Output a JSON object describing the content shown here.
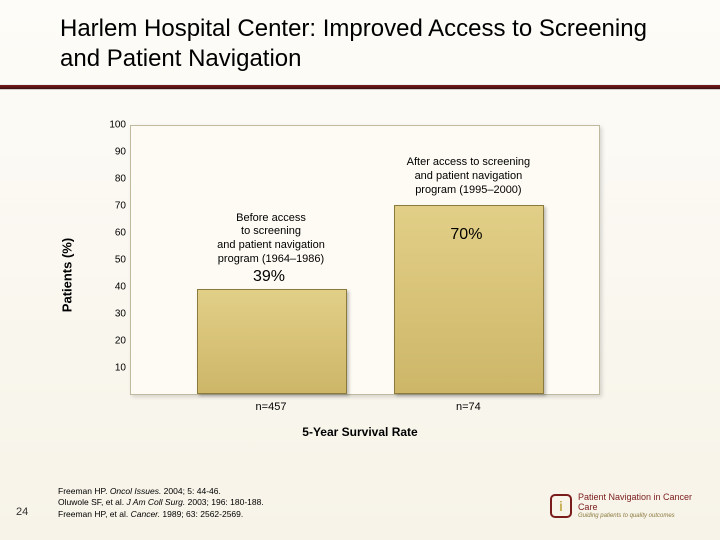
{
  "title": "Harlem Hospital Center: Improved Access to Screening and Patient Navigation",
  "chart": {
    "type": "bar",
    "y_axis_label": "Patients (%)",
    "ylim": [
      0,
      100
    ],
    "ytick_step": 10,
    "plot_bg": "#fdfbf3",
    "plot_border": "#bfb9a0",
    "bar_fill_top": "#e2cf87",
    "bar_fill_bottom": "#cdb668",
    "bar_border": "#8a7a3d",
    "bars": [
      {
        "value": 39,
        "value_label": "39%",
        "caption": "Before access\nto screening\nand patient navigation\nprogram (1964–1986)",
        "n_label": "n=457"
      },
      {
        "value": 70,
        "value_label": "70%",
        "caption": "After access to screening\nand patient navigation\nprogram (1995–2000)",
        "n_label": "n=74"
      }
    ],
    "x_title": "5-Year Survival Rate",
    "caption_fontsize": 11,
    "value_fontsize": 16
  },
  "footer": {
    "lines": [
      {
        "pre": "Freeman HP. ",
        "ital": "Oncol Issues.",
        "post": " 2004; 5: 44-46."
      },
      {
        "pre": "Oluwole SF, et al. ",
        "ital": "J Am Coll Surg.",
        "post": " 2003; 196: 180-188."
      },
      {
        "pre": "Freeman HP, et al. ",
        "ital": "Cancer.",
        "post": " 1989; 63: 2562-2569."
      }
    ]
  },
  "page_number": "24",
  "logo": {
    "mark_text": "i",
    "line1": "Patient Navigation in Cancer Care",
    "line2": "Guiding patients to quality outcomes"
  }
}
